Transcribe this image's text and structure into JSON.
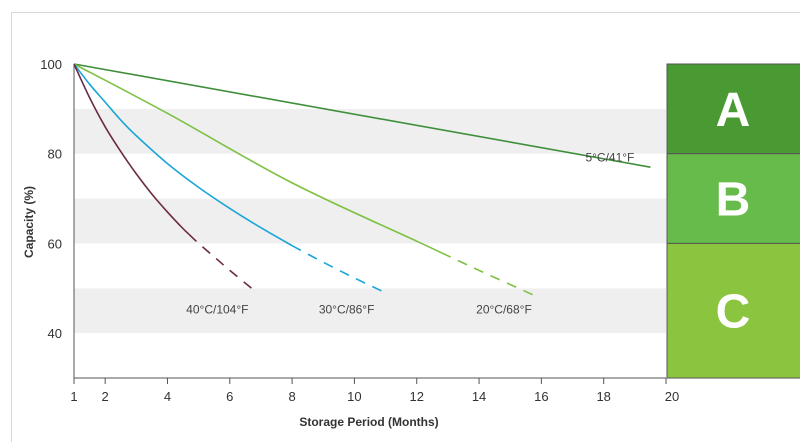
{
  "chart_data": {
    "type": "line",
    "xlabel": "Storage Period (Months)",
    "ylabel": "Capacity (%)",
    "xlim": [
      1,
      20
    ],
    "ylim": [
      30,
      100
    ],
    "xticks": [
      1,
      2,
      4,
      6,
      8,
      10,
      12,
      14,
      16,
      18,
      20
    ],
    "yticks": [
      40,
      60,
      80,
      100
    ],
    "grid": "alternating horizontal bands",
    "series": [
      {
        "name": "5°C/41°F",
        "color": "#3f8f3a",
        "x": [
          1,
          19.5
        ],
        "y": [
          100,
          77
        ],
        "dashed_from_x": null
      },
      {
        "name": "20°C/68°F",
        "color": "#7cc142",
        "x": [
          1,
          4,
          8,
          12,
          14,
          15.9
        ],
        "y": [
          100,
          89,
          73.5,
          60.5,
          54,
          48
        ],
        "dashed_from_x": 12.8
      },
      {
        "name": "30°C/86°F",
        "color": "#1aa6d6",
        "x": [
          1,
          1.5,
          2,
          2.5,
          3,
          4,
          5,
          6,
          7,
          8,
          9,
          10,
          11
        ],
        "y": [
          100,
          95.5,
          91.5,
          87.5,
          84,
          77.8,
          72.5,
          67.8,
          63.5,
          59.5,
          55.8,
          52.3,
          49
        ],
        "dashed_from_x": 8
      },
      {
        "name": "40°C/104°F",
        "color": "#6b2a47",
        "x": [
          1,
          1.5,
          2,
          2.5,
          3,
          3.5,
          4,
          4.5,
          5,
          5.5,
          6,
          6.7
        ],
        "y": [
          100,
          92.5,
          86,
          80.5,
          75.5,
          71,
          67,
          63.3,
          60,
          57,
          54,
          50
        ],
        "dashed_from_x": 4.7
      }
    ],
    "zones": [
      {
        "label": "A",
        "from": 80,
        "to": 100,
        "color": "#4a9a34"
      },
      {
        "label": "B",
        "from": 60,
        "to": 80,
        "color": "#66bb4a"
      },
      {
        "label": "C",
        "from": 30,
        "to": 60,
        "color": "#8bc53f"
      }
    ]
  }
}
